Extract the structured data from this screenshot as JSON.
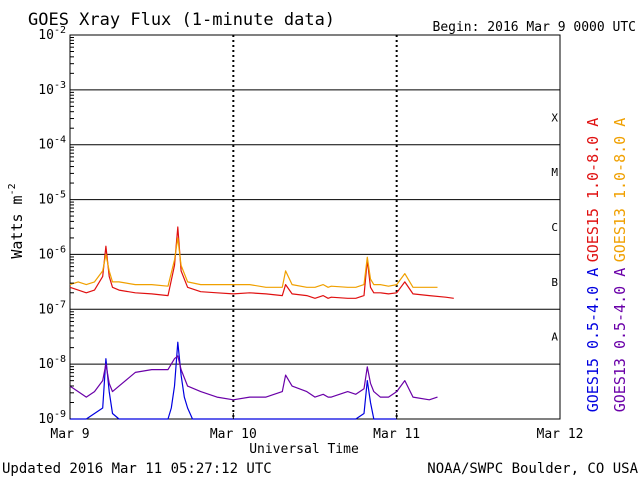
{
  "chart_data": {
    "type": "line",
    "title": "GOES Xray Flux (1-minute data)",
    "begin_label": "Begin:  2016 Mar 9 0000 UTC",
    "ylabel_main": "Watts m",
    "ylabel_sup": "-2",
    "xlabel": "Universal Time",
    "updated": "Updated 2016 Mar 11 05:27:12 UTC",
    "credit": "NOAA/SWPC Boulder, CO USA",
    "y_scale": "log",
    "ylim_exp": [
      -9,
      -2
    ],
    "y_ticks": [
      {
        "base": "10",
        "exp": "-9",
        "value": -9
      },
      {
        "base": "10",
        "exp": "-8",
        "value": -8
      },
      {
        "base": "10",
        "exp": "-7",
        "value": -7
      },
      {
        "base": "10",
        "exp": "-6",
        "value": -6
      },
      {
        "base": "10",
        "exp": "-5",
        "value": -5
      },
      {
        "base": "10",
        "exp": "-4",
        "value": -4
      },
      {
        "base": "10",
        "exp": "-3",
        "value": -3
      },
      {
        "base": "10",
        "exp": "-2",
        "value": -2
      }
    ],
    "xlim_days": [
      0,
      3
    ],
    "x_ticks": [
      {
        "label": "Mar 9",
        "day": 0
      },
      {
        "label": "Mar 10",
        "day": 1
      },
      {
        "label": "Mar 11",
        "day": 2
      },
      {
        "label": "Mar 12",
        "day": 3
      }
    ],
    "flare_classes": [
      {
        "label": "A",
        "value": -7.5
      },
      {
        "label": "B",
        "value": -6.5
      },
      {
        "label": "C",
        "value": -5.5
      },
      {
        "label": "M",
        "value": -4.5
      },
      {
        "label": "X",
        "value": -3.5
      }
    ],
    "grid": true,
    "legend_position": "right",
    "series": [
      {
        "name": "GOES15 1.0-8.0 A",
        "color": "#e01010",
        "x": [
          0.0,
          0.05,
          0.1,
          0.15,
          0.2,
          0.22,
          0.24,
          0.26,
          0.3,
          0.4,
          0.5,
          0.6,
          0.64,
          0.66,
          0.68,
          0.72,
          0.8,
          0.9,
          1.0,
          1.1,
          1.2,
          1.3,
          1.32,
          1.36,
          1.45,
          1.5,
          1.55,
          1.58,
          1.6,
          1.7,
          1.75,
          1.8,
          1.82,
          1.84,
          1.86,
          1.9,
          1.95,
          2.0,
          2.05,
          2.1,
          2.2,
          2.3,
          2.35
        ],
        "y": [
          -6.6,
          -6.65,
          -6.7,
          -6.65,
          -6.4,
          -5.85,
          -6.4,
          -6.6,
          -6.65,
          -6.7,
          -6.72,
          -6.75,
          -6.2,
          -5.5,
          -6.3,
          -6.6,
          -6.68,
          -6.7,
          -6.72,
          -6.7,
          -6.72,
          -6.75,
          -6.55,
          -6.72,
          -6.75,
          -6.8,
          -6.75,
          -6.8,
          -6.78,
          -6.8,
          -6.8,
          -6.75,
          -6.1,
          -6.6,
          -6.7,
          -6.7,
          -6.72,
          -6.7,
          -6.5,
          -6.72,
          -6.75,
          -6.78,
          -6.8
        ]
      },
      {
        "name": "GOES13 1.0-8.0 A",
        "color": "#f0a000",
        "x": [
          0.0,
          0.05,
          0.1,
          0.15,
          0.2,
          0.22,
          0.24,
          0.26,
          0.3,
          0.4,
          0.5,
          0.6,
          0.64,
          0.66,
          0.68,
          0.72,
          0.8,
          0.9,
          1.0,
          1.1,
          1.2,
          1.3,
          1.32,
          1.36,
          1.45,
          1.5,
          1.55,
          1.58,
          1.6,
          1.7,
          1.75,
          1.8,
          1.82,
          1.84,
          1.86,
          1.9,
          1.95,
          2.0,
          2.05,
          2.1,
          2.2,
          2.25
        ],
        "y": [
          -6.55,
          -6.5,
          -6.55,
          -6.5,
          -6.3,
          -6.0,
          -6.3,
          -6.5,
          -6.5,
          -6.55,
          -6.55,
          -6.58,
          -6.1,
          -5.7,
          -6.2,
          -6.5,
          -6.55,
          -6.55,
          -6.55,
          -6.55,
          -6.6,
          -6.6,
          -6.3,
          -6.55,
          -6.6,
          -6.6,
          -6.55,
          -6.6,
          -6.58,
          -6.6,
          -6.6,
          -6.55,
          -6.05,
          -6.45,
          -6.55,
          -6.55,
          -6.58,
          -6.55,
          -6.35,
          -6.6,
          -6.6,
          -6.6
        ]
      },
      {
        "name": "GOES15 0.5-4.0 A",
        "color": "#0000e0",
        "x": [
          0.0,
          0.1,
          0.2,
          0.22,
          0.24,
          0.26,
          0.3,
          0.4,
          0.5,
          0.6,
          0.62,
          0.64,
          0.66,
          0.68,
          0.7,
          0.72,
          0.75,
          0.8,
          0.85,
          0.9,
          1.0,
          1.3,
          1.5,
          1.75,
          1.8,
          1.82,
          1.84,
          1.86,
          1.9,
          1.95,
          2.0
        ],
        "y": [
          -9.0,
          -9.0,
          -8.8,
          -7.9,
          -8.5,
          -8.9,
          -9.0,
          -9.0,
          -9.0,
          -9.0,
          -8.8,
          -8.4,
          -7.6,
          -8.2,
          -8.6,
          -8.8,
          -9.0,
          -9.0,
          -9.0,
          -9.0,
          -9.0,
          -9.0,
          -9.0,
          -9.0,
          -8.9,
          -8.3,
          -8.7,
          -9.0,
          -9.0,
          -9.0,
          -9.0
        ]
      },
      {
        "name": "GOES13 0.5-4.0 A",
        "color": "#6a00a8",
        "x": [
          0.0,
          0.05,
          0.1,
          0.15,
          0.2,
          0.22,
          0.24,
          0.26,
          0.3,
          0.4,
          0.5,
          0.6,
          0.64,
          0.66,
          0.68,
          0.72,
          0.8,
          0.9,
          1.0,
          1.1,
          1.2,
          1.3,
          1.32,
          1.36,
          1.45,
          1.5,
          1.55,
          1.58,
          1.6,
          1.7,
          1.75,
          1.8,
          1.82,
          1.84,
          1.86,
          1.9,
          1.95,
          2.0,
          2.05,
          2.1,
          2.2,
          2.25
        ],
        "y": [
          -8.4,
          -8.5,
          -8.6,
          -8.5,
          -8.3,
          -8.0,
          -8.35,
          -8.5,
          -8.4,
          -8.15,
          -8.1,
          -8.1,
          -7.9,
          -7.85,
          -8.1,
          -8.4,
          -8.5,
          -8.6,
          -8.65,
          -8.6,
          -8.6,
          -8.5,
          -8.2,
          -8.4,
          -8.5,
          -8.6,
          -8.55,
          -8.6,
          -8.6,
          -8.5,
          -8.55,
          -8.45,
          -8.05,
          -8.35,
          -8.5,
          -8.6,
          -8.6,
          -8.5,
          -8.3,
          -8.6,
          -8.65,
          -8.6
        ]
      }
    ]
  }
}
